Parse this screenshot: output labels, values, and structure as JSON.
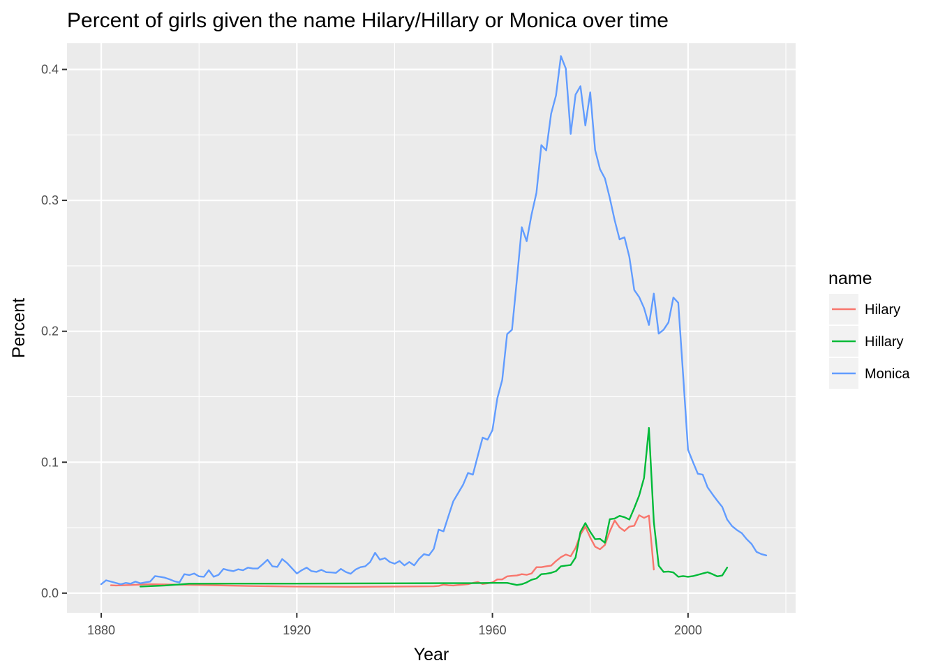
{
  "chart_data": {
    "type": "line",
    "title": "Percent of girls given the name Hilary/Hillary or Monica over time",
    "xlabel": "Year",
    "ylabel": "Percent",
    "xlim": [
      1873,
      2022
    ],
    "ylim": [
      -0.015,
      0.42
    ],
    "x_ticks": [
      1880,
      1920,
      1960,
      2000
    ],
    "y_ticks": [
      0.0,
      0.1,
      0.2,
      0.3,
      0.4
    ],
    "x_tick_labels": [
      "1880",
      "1920",
      "1960",
      "2000"
    ],
    "y_tick_labels": [
      "0.0",
      "0.1",
      "0.2",
      "0.3",
      "0.4"
    ],
    "x_minor_ticks": [
      1900,
      1940,
      1980,
      2020
    ],
    "y_minor_ticks": [
      0.05,
      0.15,
      0.25,
      0.35
    ],
    "grid": true,
    "legend": {
      "title": "name",
      "position": "right"
    },
    "series": [
      {
        "name": "Hilary",
        "color": "#F8766D",
        "points": [
          [
            1882,
            0.006
          ],
          [
            1883,
            0.0058
          ],
          [
            1886,
            0.0062
          ],
          [
            1890,
            0.0068
          ],
          [
            1900,
            0.0062
          ],
          [
            1910,
            0.0055
          ],
          [
            1920,
            0.005
          ],
          [
            1930,
            0.0048
          ],
          [
            1940,
            0.005
          ],
          [
            1948,
            0.0052
          ],
          [
            1949,
            0.0055
          ],
          [
            1950,
            0.0065
          ],
          [
            1951,
            0.006
          ],
          [
            1952,
            0.0058
          ],
          [
            1953,
            0.0062
          ],
          [
            1954,
            0.0065
          ],
          [
            1955,
            0.0068
          ],
          [
            1956,
            0.0078
          ],
          [
            1957,
            0.0085
          ],
          [
            1958,
            0.007
          ],
          [
            1959,
            0.0075
          ],
          [
            1960,
            0.0082
          ],
          [
            1961,
            0.0105
          ],
          [
            1962,
            0.0105
          ],
          [
            1963,
            0.0128
          ],
          [
            1964,
            0.0132
          ],
          [
            1965,
            0.0135
          ],
          [
            1966,
            0.0145
          ],
          [
            1967,
            0.014
          ],
          [
            1968,
            0.015
          ],
          [
            1969,
            0.0198
          ],
          [
            1970,
            0.0198
          ],
          [
            1971,
            0.0205
          ],
          [
            1972,
            0.021
          ],
          [
            1973,
            0.0245
          ],
          [
            1974,
            0.0275
          ],
          [
            1975,
            0.0295
          ],
          [
            1976,
            0.0282
          ],
          [
            1977,
            0.0345
          ],
          [
            1978,
            0.0448
          ],
          [
            1979,
            0.0508
          ],
          [
            1980,
            0.0425
          ],
          [
            1981,
            0.0355
          ],
          [
            1982,
            0.0335
          ],
          [
            1983,
            0.0368
          ],
          [
            1984,
            0.0472
          ],
          [
            1985,
            0.0555
          ],
          [
            1986,
            0.0502
          ],
          [
            1987,
            0.0475
          ],
          [
            1988,
            0.0508
          ],
          [
            1989,
            0.0515
          ],
          [
            1990,
            0.0595
          ],
          [
            1991,
            0.0575
          ],
          [
            1992,
            0.0592
          ],
          [
            1993,
            0.018
          ]
        ]
      },
      {
        "name": "Hillary",
        "color": "#00BA38",
        "points": [
          [
            1888,
            0.005
          ],
          [
            1893,
            0.0058
          ],
          [
            1898,
            0.0072
          ],
          [
            1905,
            0.0073
          ],
          [
            1920,
            0.0073
          ],
          [
            1940,
            0.0075
          ],
          [
            1950,
            0.0076
          ],
          [
            1956,
            0.0076
          ],
          [
            1960,
            0.0078
          ],
          [
            1963,
            0.0078
          ],
          [
            1964,
            0.007
          ],
          [
            1965,
            0.0062
          ],
          [
            1966,
            0.0068
          ],
          [
            1967,
            0.0082
          ],
          [
            1968,
            0.0102
          ],
          [
            1969,
            0.0112
          ],
          [
            1970,
            0.0145
          ],
          [
            1971,
            0.0148
          ],
          [
            1972,
            0.0155
          ],
          [
            1973,
            0.0168
          ],
          [
            1974,
            0.0205
          ],
          [
            1975,
            0.021
          ],
          [
            1976,
            0.0215
          ],
          [
            1977,
            0.0272
          ],
          [
            1978,
            0.0468
          ],
          [
            1979,
            0.0535
          ],
          [
            1980,
            0.0468
          ],
          [
            1981,
            0.0412
          ],
          [
            1982,
            0.0415
          ],
          [
            1983,
            0.0385
          ],
          [
            1984,
            0.0565
          ],
          [
            1985,
            0.057
          ],
          [
            1986,
            0.059
          ],
          [
            1987,
            0.058
          ],
          [
            1988,
            0.0562
          ],
          [
            1989,
            0.065
          ],
          [
            1990,
            0.0745
          ],
          [
            1991,
            0.088
          ],
          [
            1992,
            0.1262
          ],
          [
            1993,
            0.0545
          ],
          [
            1994,
            0.021
          ],
          [
            1995,
            0.0162
          ],
          [
            1996,
            0.0165
          ],
          [
            1997,
            0.0158
          ],
          [
            1998,
            0.0125
          ],
          [
            1999,
            0.013
          ],
          [
            2000,
            0.0125
          ],
          [
            2001,
            0.013
          ],
          [
            2002,
            0.014
          ],
          [
            2003,
            0.015
          ],
          [
            2004,
            0.016
          ],
          [
            2005,
            0.0145
          ],
          [
            2006,
            0.0128
          ],
          [
            2007,
            0.0135
          ],
          [
            2008,
            0.0195
          ]
        ]
      },
      {
        "name": "Monica",
        "color": "#619CFF",
        "points": [
          [
            1880,
            0.0068
          ],
          [
            1881,
            0.0098
          ],
          [
            1882,
            0.0088
          ],
          [
            1883,
            0.0078
          ],
          [
            1884,
            0.0068
          ],
          [
            1885,
            0.0078
          ],
          [
            1886,
            0.0072
          ],
          [
            1887,
            0.0088
          ],
          [
            1888,
            0.0075
          ],
          [
            1889,
            0.0082
          ],
          [
            1890,
            0.0088
          ],
          [
            1891,
            0.013
          ],
          [
            1892,
            0.0125
          ],
          [
            1893,
            0.0118
          ],
          [
            1894,
            0.0105
          ],
          [
            1895,
            0.009
          ],
          [
            1896,
            0.0082
          ],
          [
            1897,
            0.0145
          ],
          [
            1898,
            0.0138
          ],
          [
            1899,
            0.015
          ],
          [
            1900,
            0.0128
          ],
          [
            1901,
            0.0125
          ],
          [
            1902,
            0.0175
          ],
          [
            1903,
            0.0125
          ],
          [
            1904,
            0.014
          ],
          [
            1905,
            0.0185
          ],
          [
            1906,
            0.0175
          ],
          [
            1907,
            0.0168
          ],
          [
            1908,
            0.0182
          ],
          [
            1909,
            0.0175
          ],
          [
            1910,
            0.0195
          ],
          [
            1911,
            0.0188
          ],
          [
            1912,
            0.0188
          ],
          [
            1913,
            0.022
          ],
          [
            1914,
            0.0255
          ],
          [
            1915,
            0.0205
          ],
          [
            1916,
            0.02
          ],
          [
            1917,
            0.026
          ],
          [
            1918,
            0.023
          ],
          [
            1919,
            0.019
          ],
          [
            1920,
            0.015
          ],
          [
            1921,
            0.0175
          ],
          [
            1922,
            0.0195
          ],
          [
            1923,
            0.0168
          ],
          [
            1924,
            0.0162
          ],
          [
            1925,
            0.0178
          ],
          [
            1926,
            0.016
          ],
          [
            1927,
            0.0158
          ],
          [
            1928,
            0.0155
          ],
          [
            1929,
            0.0185
          ],
          [
            1930,
            0.0162
          ],
          [
            1931,
            0.0148
          ],
          [
            1932,
            0.018
          ],
          [
            1933,
            0.0198
          ],
          [
            1934,
            0.0205
          ],
          [
            1935,
            0.0238
          ],
          [
            1936,
            0.0308
          ],
          [
            1937,
            0.0255
          ],
          [
            1938,
            0.0268
          ],
          [
            1939,
            0.0238
          ],
          [
            1940,
            0.0225
          ],
          [
            1941,
            0.0245
          ],
          [
            1942,
            0.0212
          ],
          [
            1943,
            0.0238
          ],
          [
            1944,
            0.0212
          ],
          [
            1945,
            0.0262
          ],
          [
            1946,
            0.0298
          ],
          [
            1947,
            0.0288
          ],
          [
            1948,
            0.0338
          ],
          [
            1949,
            0.0485
          ],
          [
            1950,
            0.0472
          ],
          [
            1951,
            0.0588
          ],
          [
            1952,
            0.0702
          ],
          [
            1953,
            0.0765
          ],
          [
            1954,
            0.0828
          ],
          [
            1955,
            0.0918
          ],
          [
            1956,
            0.0905
          ],
          [
            1957,
            0.1048
          ],
          [
            1958,
            0.1188
          ],
          [
            1959,
            0.1172
          ],
          [
            1960,
            0.1245
          ],
          [
            1961,
            0.1488
          ],
          [
            1962,
            0.1628
          ],
          [
            1963,
            0.1978
          ],
          [
            1964,
            0.2012
          ],
          [
            1965,
            0.2395
          ],
          [
            1966,
            0.2795
          ],
          [
            1967,
            0.2688
          ],
          [
            1968,
            0.2892
          ],
          [
            1969,
            0.3058
          ],
          [
            1970,
            0.3422
          ],
          [
            1971,
            0.3382
          ],
          [
            1972,
            0.3662
          ],
          [
            1973,
            0.3802
          ],
          [
            1974,
            0.4102
          ],
          [
            1975,
            0.4008
          ],
          [
            1976,
            0.3508
          ],
          [
            1977,
            0.3808
          ],
          [
            1978,
            0.3872
          ],
          [
            1979,
            0.3572
          ],
          [
            1980,
            0.3825
          ],
          [
            1981,
            0.3385
          ],
          [
            1982,
            0.3238
          ],
          [
            1983,
            0.3168
          ],
          [
            1984,
            0.3018
          ],
          [
            1985,
            0.2848
          ],
          [
            1986,
            0.2702
          ],
          [
            1987,
            0.2718
          ],
          [
            1988,
            0.2568
          ],
          [
            1989,
            0.2315
          ],
          [
            1990,
            0.2262
          ],
          [
            1991,
            0.2178
          ],
          [
            1992,
            0.2048
          ],
          [
            1993,
            0.2288
          ],
          [
            1994,
            0.1982
          ],
          [
            1995,
            0.2012
          ],
          [
            1996,
            0.2068
          ],
          [
            1997,
            0.2258
          ],
          [
            1998,
            0.2218
          ],
          [
            1999,
            0.1662
          ],
          [
            2000,
            0.1095
          ],
          [
            2001,
            0.1002
          ],
          [
            2002,
            0.0912
          ],
          [
            2003,
            0.0905
          ],
          [
            2004,
            0.0808
          ],
          [
            2005,
            0.0755
          ],
          [
            2006,
            0.0705
          ],
          [
            2007,
            0.0658
          ],
          [
            2008,
            0.0562
          ],
          [
            2009,
            0.0512
          ],
          [
            2010,
            0.0482
          ],
          [
            2011,
            0.0458
          ],
          [
            2012,
            0.0412
          ],
          [
            2013,
            0.0375
          ],
          [
            2014,
            0.0315
          ],
          [
            2015,
            0.0298
          ],
          [
            2016,
            0.0288
          ]
        ]
      }
    ]
  }
}
